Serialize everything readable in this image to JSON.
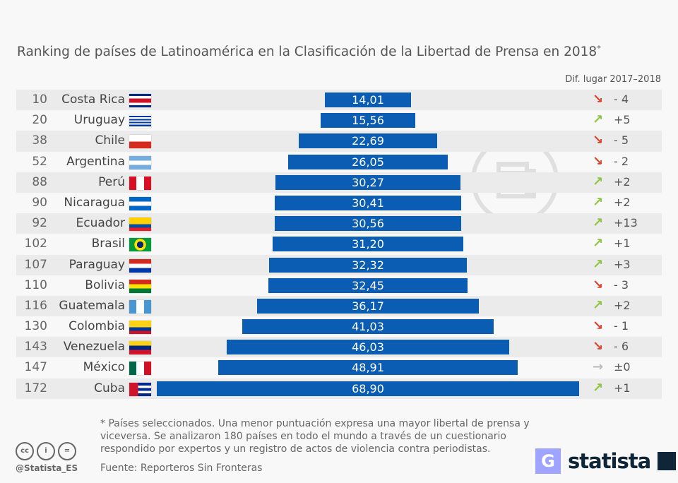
{
  "chart_data": {
    "type": "bar",
    "title": "Ranking de países de Latinoamérica en la Clasificación de la Libertad de Prensa en 2018",
    "title_mark": "*",
    "diff_header": "Dif. lugar 2017–2018",
    "categories": [
      "Costa Rica",
      "Uruguay",
      "Chile",
      "Argentina",
      "Perú",
      "Nicaragua",
      "Ecuador",
      "Brasil",
      "Paraguay",
      "Bolivia",
      "Guatemala",
      "Colombia",
      "Venezuela",
      "México",
      "Cuba"
    ],
    "ranks": [
      "10",
      "20",
      "38",
      "52",
      "88",
      "90",
      "92",
      "102",
      "107",
      "110",
      "116",
      "130",
      "143",
      "147",
      "172"
    ],
    "values": [
      14.01,
      15.56,
      22.69,
      26.05,
      30.27,
      30.41,
      30.56,
      31.2,
      32.32,
      32.45,
      36.17,
      41.03,
      46.03,
      48.91,
      68.9
    ],
    "value_labels": [
      "14,01",
      "15,56",
      "22,69",
      "26,05",
      "30,27",
      "30,41",
      "30,56",
      "31,20",
      "32,32",
      "32,45",
      "36,17",
      "41,03",
      "46,03",
      "48,91",
      "68,90"
    ],
    "diffs": [
      "- 4",
      "+5",
      "- 5",
      "- 2",
      "+2",
      "+2",
      "+13",
      "+1",
      "+3",
      "- 3",
      "+2",
      "- 1",
      "- 6",
      "±0",
      "+1"
    ],
    "directions": [
      "down",
      "up",
      "down",
      "down",
      "up",
      "up",
      "up",
      "up",
      "up",
      "down",
      "up",
      "down",
      "down",
      "flat",
      "up"
    ],
    "bar_color": "#0b5db3",
    "colors": {
      "up": "#8cc63f",
      "down": "#e0412b",
      "flat": "#bbbbbb"
    }
  },
  "footer": {
    "note": "* Países seleccionados. Una menor puntuación expresa una mayor libertal de prensa y viceversa. Se analizaron 180 países en todo el mundo a través de un cuestionario respondido por expertos y un registro de actos de violencia contra periodistas.",
    "source": "Fuente: Reporteros Sin Fronteras",
    "handle": "@Statista_ES",
    "brand": "statista"
  }
}
